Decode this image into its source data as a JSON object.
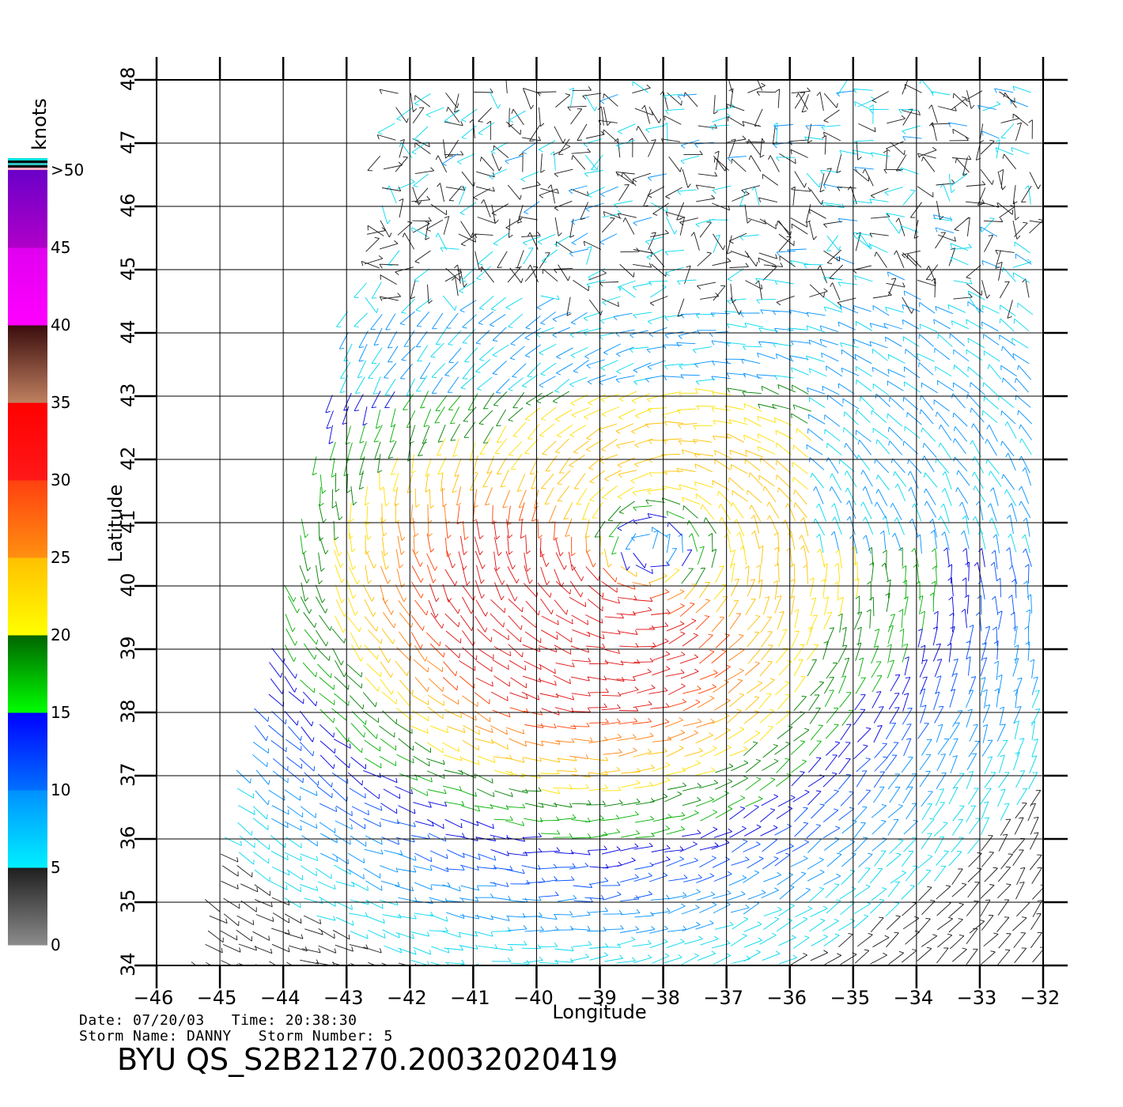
{
  "map": {
    "xlabel": "Longitude",
    "ylabel": "Latitude",
    "lon_range": [
      -46,
      -32
    ],
    "lat_range": [
      34,
      48
    ],
    "lon_ticks": [
      "-46",
      "-45",
      "-44",
      "-43",
      "-42",
      "-41",
      "-40",
      "-39",
      "-38",
      "-37",
      "-36",
      "-35",
      "-34",
      "-33",
      "-32"
    ],
    "lat_ticks": [
      "34",
      "35",
      "36",
      "37",
      "38",
      "39",
      "40",
      "41",
      "42",
      "43",
      "44",
      "45",
      "46",
      "47",
      "48"
    ],
    "grid": true
  },
  "colorbar": {
    "unit_label": "knots",
    "labels": [
      "0",
      "5",
      "10",
      "15",
      "20",
      "25",
      "30",
      "35",
      "40",
      "45",
      ">50"
    ],
    "bands": [
      {
        "from": 0,
        "to": 5,
        "colors": [
          "#8c8c8c",
          "#1e1e1e"
        ]
      },
      {
        "from": 5,
        "to": 10,
        "colors": [
          "#00f0ff",
          "#0090ff"
        ]
      },
      {
        "from": 10,
        "to": 15,
        "colors": [
          "#0070ff",
          "#0000ff"
        ]
      },
      {
        "from": 15,
        "to": 20,
        "colors": [
          "#00ff00",
          "#006400"
        ]
      },
      {
        "from": 20,
        "to": 25,
        "colors": [
          "#ffff00",
          "#ffc000"
        ]
      },
      {
        "from": 25,
        "to": 30,
        "colors": [
          "#ff9010",
          "#ff4010"
        ]
      },
      {
        "from": 30,
        "to": 35,
        "colors": [
          "#ff1818",
          "#ff0000"
        ]
      },
      {
        "from": 35,
        "to": 40,
        "colors": [
          "#c08060",
          "#3a0c0c"
        ]
      },
      {
        "from": 40,
        "to": 45,
        "colors": [
          "#ff00ff",
          "#e000f0"
        ]
      },
      {
        "from": 45,
        "to": 50,
        "colors": [
          "#b000c8",
          "#6a00c8"
        ]
      }
    ]
  },
  "storm": {
    "center_lon": -38.2,
    "center_lat": 40.6
  },
  "info": {
    "line1": "Date: 07/20/03   Time: 20:38:30",
    "line2": "Storm Name: DANNY   Storm Number: 5",
    "title": "BYU QS_S2B21270.20032020419"
  }
}
